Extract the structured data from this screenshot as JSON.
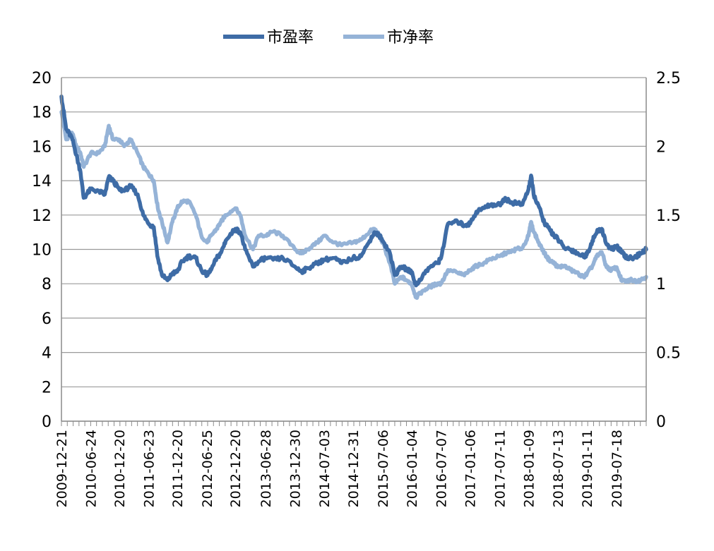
{
  "chart_data": {
    "type": "line",
    "title": "",
    "xlabel": "",
    "ylabel": "",
    "legend_position": "top",
    "grid": true,
    "y_left": {
      "min": 0,
      "max": 20,
      "ticks": [
        "0",
        "2",
        "4",
        "6",
        "8",
        "10",
        "12",
        "14",
        "16",
        "18",
        "20"
      ]
    },
    "y_right": {
      "min": 0,
      "max": 2.5,
      "ticks": [
        "0",
        "0.5",
        "1",
        "1.5",
        "2",
        "2.5"
      ]
    },
    "x_range": [
      "2009-12-21",
      "2020-01-20"
    ],
    "x_tick_labels": [
      "2009-12-21",
      "2010-06-24",
      "2010-12-20",
      "2011-06-23",
      "2011-12-20",
      "2012-06-25",
      "2012-12-20",
      "2013-06-28",
      "2013-12-30",
      "2014-07-03",
      "2014-12-31",
      "2015-07-06",
      "2016-01-04",
      "2016-07-07",
      "2017-01-06",
      "2017-07-11",
      "2018-01-09",
      "2018-07-13",
      "2019-01-11",
      "2019-07-18"
    ],
    "series": [
      {
        "name": "市盈率",
        "axis": "left",
        "color": "#3E6CA6",
        "points": [
          [
            "2009-12-21",
            18.9
          ],
          [
            "2010-01-20",
            17.0
          ],
          [
            "2010-02-25",
            16.5
          ],
          [
            "2010-03-25",
            15.5
          ],
          [
            "2010-04-20",
            14.5
          ],
          [
            "2010-05-10",
            13.0
          ],
          [
            "2010-06-24",
            13.5
          ],
          [
            "2010-08-10",
            13.4
          ],
          [
            "2010-09-20",
            13.2
          ],
          [
            "2010-10-15",
            14.2
          ],
          [
            "2010-11-10",
            14.0
          ],
          [
            "2010-12-20",
            13.5
          ],
          [
            "2011-01-20",
            13.4
          ],
          [
            "2011-03-01",
            13.7
          ],
          [
            "2011-04-15",
            13.2
          ],
          [
            "2011-05-20",
            12.0
          ],
          [
            "2011-06-23",
            11.5
          ],
          [
            "2011-07-25",
            11.3
          ],
          [
            "2011-08-20",
            9.5
          ],
          [
            "2011-09-15",
            8.5
          ],
          [
            "2011-10-20",
            8.2
          ],
          [
            "2011-11-20",
            8.6
          ],
          [
            "2011-12-20",
            8.7
          ],
          [
            "2012-01-20",
            9.3
          ],
          [
            "2012-03-01",
            9.6
          ],
          [
            "2012-04-15",
            9.5
          ],
          [
            "2012-05-20",
            8.8
          ],
          [
            "2012-06-25",
            8.5
          ],
          [
            "2012-07-20",
            8.8
          ],
          [
            "2012-08-25",
            9.5
          ],
          [
            "2012-09-20",
            9.8
          ],
          [
            "2012-10-20",
            10.5
          ],
          [
            "2012-12-20",
            11.2
          ],
          [
            "2013-01-20",
            11.0
          ],
          [
            "2013-02-20",
            10.0
          ],
          [
            "2013-04-10",
            9.0
          ],
          [
            "2013-05-15",
            9.3
          ],
          [
            "2013-06-28",
            9.5
          ],
          [
            "2013-08-15",
            9.4
          ],
          [
            "2013-10-15",
            9.5
          ],
          [
            "2013-12-30",
            9.0
          ],
          [
            "2014-02-10",
            8.7
          ],
          [
            "2014-03-20",
            8.9
          ],
          [
            "2014-05-20",
            9.2
          ],
          [
            "2014-07-03",
            9.4
          ],
          [
            "2014-09-01",
            9.5
          ],
          [
            "2014-10-20",
            9.2
          ],
          [
            "2014-12-31",
            9.5
          ],
          [
            "2015-02-20",
            9.6
          ],
          [
            "2015-04-15",
            10.5
          ],
          [
            "2015-05-15",
            11.0
          ],
          [
            "2015-06-15",
            10.8
          ],
          [
            "2015-07-06",
            10.5
          ],
          [
            "2015-08-20",
            9.8
          ],
          [
            "2015-09-20",
            8.5
          ],
          [
            "2015-11-01",
            9.0
          ],
          [
            "2015-12-10",
            8.8
          ],
          [
            "2016-01-04",
            8.7
          ],
          [
            "2016-02-01",
            7.9
          ],
          [
            "2016-03-15",
            8.5
          ],
          [
            "2016-05-01",
            9.0
          ],
          [
            "2016-06-15",
            9.2
          ],
          [
            "2016-07-07",
            9.5
          ],
          [
            "2016-08-20",
            11.5
          ],
          [
            "2016-10-20",
            11.6
          ],
          [
            "2016-12-01",
            11.4
          ],
          [
            "2017-01-06",
            11.5
          ],
          [
            "2017-02-15",
            12.2
          ],
          [
            "2017-04-01",
            12.4
          ],
          [
            "2017-05-15",
            12.6
          ],
          [
            "2017-07-11",
            12.6
          ],
          [
            "2017-08-15",
            13.0
          ],
          [
            "2017-09-20",
            12.7
          ],
          [
            "2017-10-20",
            12.7
          ],
          [
            "2017-12-01",
            12.6
          ],
          [
            "2018-01-09",
            13.5
          ],
          [
            "2018-01-25",
            14.3
          ],
          [
            "2018-02-10",
            13.2
          ],
          [
            "2018-03-15",
            12.5
          ],
          [
            "2018-04-20",
            11.5
          ],
          [
            "2018-05-20",
            11.2
          ],
          [
            "2018-06-20",
            10.8
          ],
          [
            "2018-07-13",
            10.6
          ],
          [
            "2018-08-20",
            10.1
          ],
          [
            "2018-10-01",
            10.0
          ],
          [
            "2018-11-10",
            9.8
          ],
          [
            "2018-12-20",
            9.6
          ],
          [
            "2019-01-11",
            9.7
          ],
          [
            "2019-02-15",
            10.5
          ],
          [
            "2019-03-15",
            11.0
          ],
          [
            "2019-04-15",
            11.2
          ],
          [
            "2019-05-15",
            10.3
          ],
          [
            "2019-06-15",
            10.0
          ],
          [
            "2019-07-18",
            10.2
          ],
          [
            "2019-08-20",
            9.8
          ],
          [
            "2019-09-20",
            9.5
          ],
          [
            "2019-10-20",
            9.5
          ],
          [
            "2019-11-20",
            9.6
          ],
          [
            "2019-12-20",
            9.8
          ],
          [
            "2020-01-20",
            10.0
          ]
        ]
      },
      {
        "name": "市净率",
        "axis": "right",
        "color": "#95B3D7",
        "points": [
          [
            "2009-12-21",
            2.25
          ],
          [
            "2010-01-20",
            2.05
          ],
          [
            "2010-02-25",
            2.1
          ],
          [
            "2010-03-25",
            2.0
          ],
          [
            "2010-04-20",
            1.95
          ],
          [
            "2010-05-10",
            1.85
          ],
          [
            "2010-06-24",
            1.95
          ],
          [
            "2010-08-10",
            1.95
          ],
          [
            "2010-09-20",
            2.0
          ],
          [
            "2010-10-15",
            2.15
          ],
          [
            "2010-11-10",
            2.05
          ],
          [
            "2010-12-20",
            2.05
          ],
          [
            "2011-01-20",
            2.0
          ],
          [
            "2011-03-01",
            2.05
          ],
          [
            "2011-04-15",
            1.95
          ],
          [
            "2011-05-20",
            1.85
          ],
          [
            "2011-06-23",
            1.8
          ],
          [
            "2011-07-25",
            1.75
          ],
          [
            "2011-08-20",
            1.55
          ],
          [
            "2011-09-15",
            1.45
          ],
          [
            "2011-10-20",
            1.3
          ],
          [
            "2011-11-20",
            1.45
          ],
          [
            "2011-12-20",
            1.55
          ],
          [
            "2012-01-20",
            1.6
          ],
          [
            "2012-03-01",
            1.6
          ],
          [
            "2012-04-15",
            1.5
          ],
          [
            "2012-05-20",
            1.35
          ],
          [
            "2012-06-25",
            1.3
          ],
          [
            "2012-07-20",
            1.35
          ],
          [
            "2012-08-25",
            1.4
          ],
          [
            "2012-09-20",
            1.45
          ],
          [
            "2012-10-20",
            1.5
          ],
          [
            "2012-12-20",
            1.55
          ],
          [
            "2013-01-20",
            1.5
          ],
          [
            "2013-02-20",
            1.35
          ],
          [
            "2013-04-10",
            1.25
          ],
          [
            "2013-05-15",
            1.35
          ],
          [
            "2013-06-28",
            1.35
          ],
          [
            "2013-08-15",
            1.38
          ],
          [
            "2013-10-15",
            1.35
          ],
          [
            "2013-12-30",
            1.25
          ],
          [
            "2014-02-10",
            1.22
          ],
          [
            "2014-03-20",
            1.25
          ],
          [
            "2014-05-20",
            1.3
          ],
          [
            "2014-07-03",
            1.35
          ],
          [
            "2014-09-01",
            1.3
          ],
          [
            "2014-10-20",
            1.28
          ],
          [
            "2014-12-31",
            1.3
          ],
          [
            "2015-02-20",
            1.32
          ],
          [
            "2015-04-15",
            1.38
          ],
          [
            "2015-05-15",
            1.4
          ],
          [
            "2015-06-15",
            1.35
          ],
          [
            "2015-07-06",
            1.3
          ],
          [
            "2015-08-20",
            1.15
          ],
          [
            "2015-09-20",
            1.0
          ],
          [
            "2015-11-01",
            1.05
          ],
          [
            "2015-12-10",
            1.02
          ],
          [
            "2016-01-04",
            1.0
          ],
          [
            "2016-02-01",
            0.9
          ],
          [
            "2016-03-15",
            0.95
          ],
          [
            "2016-05-01",
            0.98
          ],
          [
            "2016-06-15",
            1.0
          ],
          [
            "2016-07-07",
            1.0
          ],
          [
            "2016-08-20",
            1.1
          ],
          [
            "2016-10-20",
            1.08
          ],
          [
            "2016-12-01",
            1.06
          ],
          [
            "2017-01-06",
            1.1
          ],
          [
            "2017-02-15",
            1.13
          ],
          [
            "2017-04-01",
            1.15
          ],
          [
            "2017-05-15",
            1.18
          ],
          [
            "2017-07-11",
            1.2
          ],
          [
            "2017-08-15",
            1.22
          ],
          [
            "2017-09-20",
            1.23
          ],
          [
            "2017-10-20",
            1.25
          ],
          [
            "2017-12-01",
            1.26
          ],
          [
            "2018-01-09",
            1.35
          ],
          [
            "2018-01-25",
            1.45
          ],
          [
            "2018-02-10",
            1.38
          ],
          [
            "2018-03-15",
            1.3
          ],
          [
            "2018-04-20",
            1.22
          ],
          [
            "2018-05-20",
            1.17
          ],
          [
            "2018-06-20",
            1.15
          ],
          [
            "2018-07-13",
            1.12
          ],
          [
            "2018-08-20",
            1.13
          ],
          [
            "2018-10-01",
            1.1
          ],
          [
            "2018-11-10",
            1.08
          ],
          [
            "2018-12-20",
            1.05
          ],
          [
            "2019-01-11",
            1.07
          ],
          [
            "2019-02-15",
            1.13
          ],
          [
            "2019-03-15",
            1.2
          ],
          [
            "2019-04-15",
            1.23
          ],
          [
            "2019-05-15",
            1.12
          ],
          [
            "2019-06-15",
            1.1
          ],
          [
            "2019-07-18",
            1.12
          ],
          [
            "2019-08-20",
            1.02
          ],
          [
            "2019-09-20",
            1.02
          ],
          [
            "2019-10-20",
            1.03
          ],
          [
            "2019-11-20",
            1.02
          ],
          [
            "2019-12-20",
            1.03
          ],
          [
            "2020-01-20",
            1.05
          ]
        ]
      }
    ]
  }
}
